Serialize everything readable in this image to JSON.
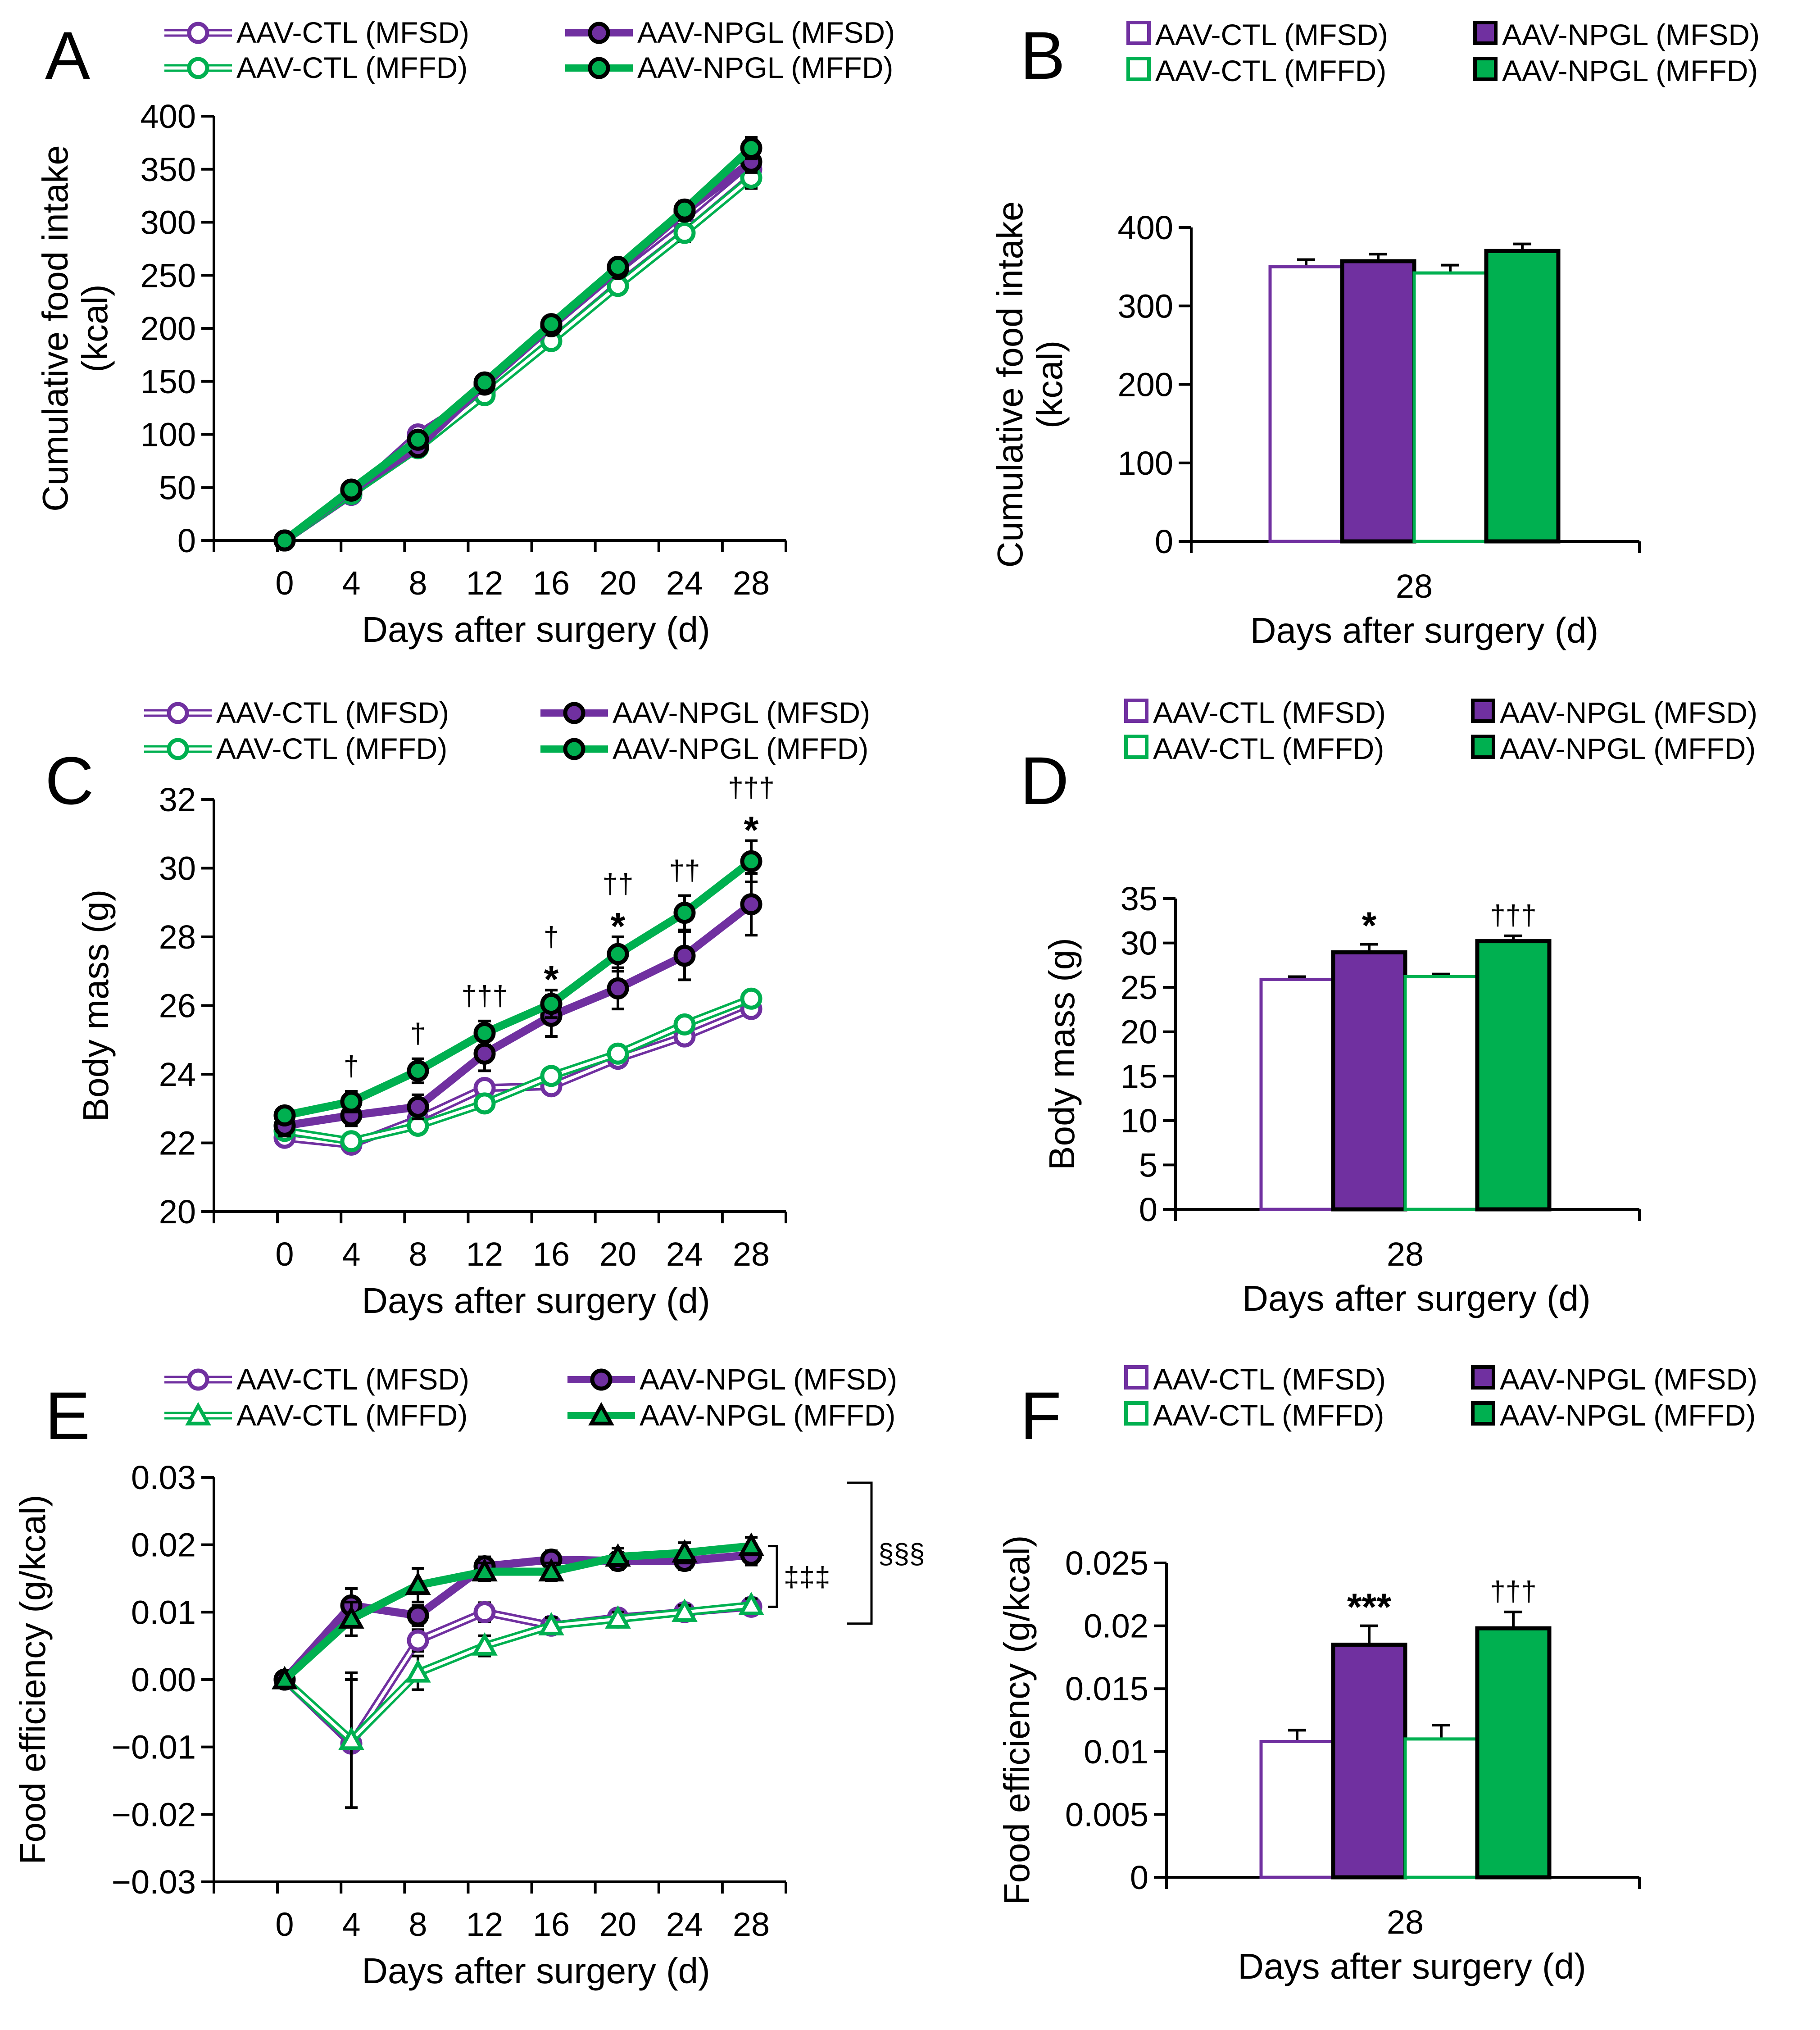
{
  "colors": {
    "purple": "#7030A0",
    "green": "#00B050",
    "black": "#000000",
    "white": "#FFFFFF"
  },
  "panels": {
    "A": "A",
    "B": "B",
    "C": "C",
    "D": "D",
    "E": "E",
    "F": "F"
  },
  "chart_data": [
    {
      "id": "A",
      "type": "line",
      "ylabel_lines": [
        "Cumulative food intake",
        "(kcal)"
      ],
      "xlabel": "Days after surgery (d)",
      "ylim": [
        0,
        400
      ],
      "yticks": [
        "0",
        "50",
        "100",
        "150",
        "200",
        "250",
        "300",
        "350",
        "400"
      ],
      "x": [
        0,
        4,
        8,
        12,
        16,
        20,
        24,
        28
      ],
      "x_tick_labels": [
        "0",
        "4",
        "8",
        "12",
        "16",
        "20",
        "24",
        "28"
      ],
      "legend": [
        "AAV-CTL (MFSD)",
        "AAV-NPGL (MFSD)",
        "AAV-CTL (MFFD)",
        "AAV-NPGL (MFFD)"
      ],
      "series": [
        {
          "name": "AAV-CTL (MFSD)",
          "values": [
            0,
            43,
            100,
            140,
            195,
            248,
            297,
            350
          ],
          "err": [
            0,
            3,
            4,
            5,
            5,
            6,
            8,
            10
          ]
        },
        {
          "name": "AAV-NPGL (MFSD)",
          "values": [
            0,
            47,
            88,
            147,
            202,
            256,
            310,
            357
          ],
          "err": [
            0,
            3,
            4,
            5,
            6,
            6,
            8,
            10
          ]
        },
        {
          "name": "AAV-CTL (MFFD)",
          "values": [
            0,
            44,
            87,
            137,
            188,
            240,
            290,
            342
          ],
          "err": [
            0,
            3,
            4,
            5,
            5,
            6,
            8,
            10
          ]
        },
        {
          "name": "AAV-NPGL (MFFD)",
          "values": [
            0,
            48,
            95,
            149,
            204,
            258,
            312,
            370
          ],
          "err": [
            0,
            3,
            4,
            5,
            6,
            6,
            8,
            10
          ]
        }
      ],
      "annotations": []
    },
    {
      "id": "B",
      "type": "bar",
      "ylabel_lines": [
        "Cumulative food intake",
        "(kcal)"
      ],
      "xlabel": "Days after surgery (d)",
      "categories": [
        "28"
      ],
      "ylim": [
        0,
        400
      ],
      "yticks": [
        "0",
        "100",
        "200",
        "300",
        "400"
      ],
      "legend": [
        "AAV-CTL (MFSD)",
        "AAV-NPGL (MFSD)",
        "AAV-CTL (MFFD)",
        "AAV-NPGL (MFFD)"
      ],
      "series": [
        {
          "name": "AAV-CTL (MFSD)",
          "values": [
            350
          ],
          "err": [
            9
          ]
        },
        {
          "name": "AAV-NPGL (MFSD)",
          "values": [
            357
          ],
          "err": [
            9
          ]
        },
        {
          "name": "AAV-CTL (MFFD)",
          "values": [
            342
          ],
          "err": [
            10
          ]
        },
        {
          "name": "AAV-NPGL (MFFD)",
          "values": [
            370
          ],
          "err": [
            9
          ]
        }
      ],
      "annotations": []
    },
    {
      "id": "C",
      "type": "line",
      "ylabel_lines": [
        "Body mass (g)"
      ],
      "xlabel": "Days after surgery (d)",
      "ylim": [
        20,
        32
      ],
      "yticks": [
        "20",
        "22",
        "24",
        "26",
        "28",
        "30",
        "32"
      ],
      "x": [
        0,
        4,
        8,
        12,
        16,
        20,
        24,
        28
      ],
      "x_tick_labels": [
        "0",
        "4",
        "8",
        "12",
        "16",
        "20",
        "24",
        "28"
      ],
      "legend": [
        "AAV-CTL (MFSD)",
        "AAV-NPGL (MFSD)",
        "AAV-CTL (MFFD)",
        "AAV-NPGL (MFFD)"
      ],
      "series": [
        {
          "name": "AAV-CTL (MFSD)",
          "values": [
            22.15,
            21.95,
            22.7,
            23.6,
            23.65,
            24.45,
            25.1,
            25.9
          ],
          "err": [
            0.2,
            0.2,
            0.2,
            0.2,
            0.2,
            0.2,
            0.2,
            0.2
          ]
        },
        {
          "name": "AAV-NPGL (MFSD)",
          "values": [
            22.5,
            22.8,
            23.05,
            24.6,
            25.7,
            26.5,
            27.45,
            28.95
          ],
          "err": [
            0.3,
            0.3,
            0.35,
            0.5,
            0.6,
            0.6,
            0.7,
            0.9
          ]
        },
        {
          "name": "AAV-CTL (MFFD)",
          "values": [
            22.35,
            22.05,
            22.5,
            23.15,
            23.95,
            24.6,
            25.45,
            26.2
          ],
          "err": [
            0.2,
            0.2,
            0.2,
            0.2,
            0.2,
            0.2,
            0.2,
            0.2
          ]
        },
        {
          "name": "AAV-NPGL (MFFD)",
          "values": [
            22.8,
            23.2,
            24.1,
            25.2,
            26.05,
            27.5,
            28.7,
            30.2
          ],
          "err": [
            0.2,
            0.3,
            0.35,
            0.35,
            0.4,
            0.5,
            0.5,
            0.6
          ]
        }
      ],
      "annotations": [
        {
          "x": 4,
          "text": "†",
          "kind": "dagger"
        },
        {
          "x": 8,
          "text": "†",
          "kind": "dagger"
        },
        {
          "x": 12,
          "text": "†††",
          "kind": "dagger"
        },
        {
          "x": 16,
          "text": "†",
          "kind": "dagger"
        },
        {
          "x": 16,
          "text": "*",
          "kind": "star"
        },
        {
          "x": 20,
          "text": "††",
          "kind": "dagger"
        },
        {
          "x": 20,
          "text": "*",
          "kind": "star"
        },
        {
          "x": 24,
          "text": "††",
          "kind": "dagger"
        },
        {
          "x": 28,
          "text": "†††",
          "kind": "dagger"
        },
        {
          "x": 28,
          "text": "*",
          "kind": "star"
        }
      ]
    },
    {
      "id": "D",
      "type": "bar",
      "ylabel_lines": [
        "Body mass (g)"
      ],
      "xlabel": "Days after surgery (d)",
      "categories": [
        "28"
      ],
      "ylim": [
        0,
        35
      ],
      "yticks": [
        "0",
        "5",
        "10",
        "15",
        "20",
        "25",
        "30",
        "35"
      ],
      "legend": [
        "AAV-CTL (MFSD)",
        "AAV-NPGL (MFSD)",
        "AAV-CTL (MFFD)",
        "AAV-NPGL (MFFD)"
      ],
      "series": [
        {
          "name": "AAV-CTL (MFSD)",
          "values": [
            25.9
          ],
          "err": [
            0.3
          ]
        },
        {
          "name": "AAV-NPGL (MFSD)",
          "values": [
            28.95
          ],
          "err": [
            0.9
          ]
        },
        {
          "name": "AAV-CTL (MFFD)",
          "values": [
            26.2
          ],
          "err": [
            0.3
          ]
        },
        {
          "name": "AAV-NPGL (MFFD)",
          "values": [
            30.2
          ],
          "err": [
            0.6
          ]
        }
      ],
      "annotations": [
        {
          "bar": 1,
          "text": "*",
          "kind": "star"
        },
        {
          "bar": 3,
          "text": "†††",
          "kind": "dagger"
        }
      ]
    },
    {
      "id": "E",
      "type": "line",
      "ylabel_lines": [
        "Food efficiency (g/kcal)"
      ],
      "xlabel": "Days after surgery (d)",
      "ylim": [
        -0.03,
        0.03
      ],
      "yticks": [
        "−0.03",
        "−0.02",
        "−0.01",
        "0.00",
        "0.01",
        "0.02",
        "0.03"
      ],
      "x": [
        0,
        4,
        8,
        12,
        16,
        20,
        24,
        28
      ],
      "x_tick_labels": [
        "0",
        "4",
        "8",
        "12",
        "16",
        "20",
        "24",
        "28"
      ],
      "legend": [
        "AAV-CTL (MFSD)",
        "AAV-NPGL (MFSD)",
        "AAV-CTL (MFFD)",
        "AAV-NPGL (MFFD)"
      ],
      "series": [
        {
          "name": "AAV-CTL (MFSD)",
          "values": [
            0,
            -0.0095,
            0.0058,
            0.01,
            0.008,
            0.0092,
            0.01,
            0.0108
          ],
          "err": [
            0,
            0.0095,
            0.0016,
            0.0014,
            0.0012,
            0.001,
            0.001,
            0.0009
          ]
        },
        {
          "name": "AAV-NPGL (MFSD)",
          "values": [
            0,
            0.011,
            0.0095,
            0.0168,
            0.0178,
            0.0176,
            0.0176,
            0.0185
          ],
          "err": [
            0,
            0.0025,
            0.0015,
            0.0014,
            0.0013,
            0.0013,
            0.0013,
            0.0015
          ]
        },
        {
          "name": "AAV-CTL (MFFD)",
          "values": [
            0,
            -0.009,
            0.001,
            0.005,
            0.008,
            0.009,
            0.01,
            0.011
          ],
          "err": [
            0,
            0.01,
            0.0025,
            0.0015,
            0.0012,
            0.001,
            0.001,
            0.001
          ]
        },
        {
          "name": "AAV-NPGL (MFFD)",
          "values": [
            0,
            0.009,
            0.014,
            0.016,
            0.016,
            0.0182,
            0.0188,
            0.0198
          ],
          "err": [
            0,
            0.0025,
            0.0025,
            0.0013,
            0.0013,
            0.0013,
            0.0015,
            0.0013
          ]
        }
      ],
      "annotations": [
        {
          "text": "‡‡‡",
          "kind": "bracket-inner"
        },
        {
          "text": "§§§",
          "kind": "bracket-outer"
        }
      ]
    },
    {
      "id": "F",
      "type": "bar",
      "ylabel_lines": [
        "Food efficiency (g/kcal)"
      ],
      "xlabel": "Days after surgery (d)",
      "categories": [
        "28"
      ],
      "ylim": [
        0,
        0.025
      ],
      "yticks": [
        "0",
        "0.005",
        "0.01",
        "0.015",
        "0.02",
        "0.025"
      ],
      "legend": [
        "AAV-CTL (MFSD)",
        "AAV-NPGL (MFSD)",
        "AAV-CTL (MFFD)",
        "AAV-NPGL (MFFD)"
      ],
      "series": [
        {
          "name": "AAV-CTL (MFSD)",
          "values": [
            0.0108
          ],
          "err": [
            0.0009
          ]
        },
        {
          "name": "AAV-NPGL (MFSD)",
          "values": [
            0.0185
          ],
          "err": [
            0.0015
          ]
        },
        {
          "name": "AAV-CTL (MFFD)",
          "values": [
            0.011
          ],
          "err": [
            0.0011
          ]
        },
        {
          "name": "AAV-NPGL (MFFD)",
          "values": [
            0.0198
          ],
          "err": [
            0.0013
          ]
        }
      ],
      "annotations": [
        {
          "bar": 1,
          "text": "***",
          "kind": "star"
        },
        {
          "bar": 3,
          "text": "†††",
          "kind": "dagger"
        }
      ]
    }
  ]
}
